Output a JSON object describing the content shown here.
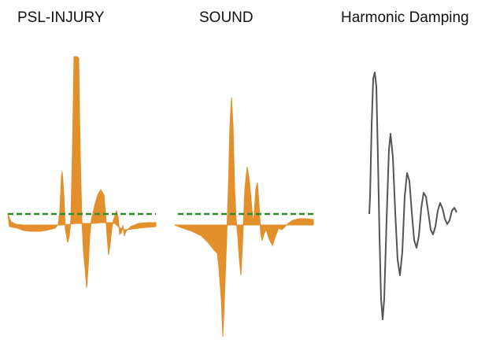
{
  "panels": [
    {
      "title": "PSL-INJURY"
    },
    {
      "title": "SOUND"
    },
    {
      "title": "Harmonic Damping"
    }
  ],
  "colors": {
    "waveform_fill": "#E38F2B",
    "baseline_dash": "#2E8B2E",
    "damping_line": "#555555",
    "title_text": "#111111",
    "background": "#ffffff"
  },
  "icons": []
}
